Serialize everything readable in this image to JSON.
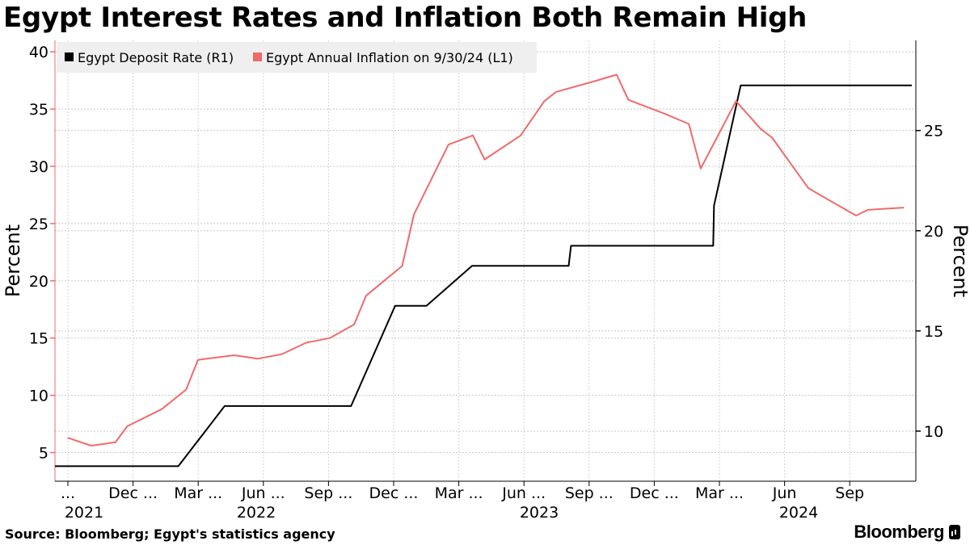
{
  "title": "Egypt Interest Rates and Inflation Both Remain High",
  "source": "Source: Bloomberg; Egypt's statistics agency",
  "brand": "Bloomberg",
  "chart_data": {
    "type": "line",
    "legend": {
      "placement": "top-left"
    },
    "grid": true,
    "x_tick_labels": [
      "...",
      "Dec ...",
      "Mar ...",
      "Jun ...",
      "Sep ...",
      "Dec ...",
      "Mar ...",
      "Jun ...",
      "Sep ...",
      "Dec ...",
      "Mar ...",
      "Jun",
      "Sep"
    ],
    "x_year_labels": [
      "2021",
      "2022",
      "2023",
      "2024"
    ],
    "left_axis": {
      "label": "Percent",
      "range": [
        2.5,
        41
      ],
      "ticks": [
        5,
        10,
        15,
        20,
        25,
        30,
        35,
        40
      ]
    },
    "right_axis": {
      "label": "Percent",
      "range": [
        7.5,
        29.5
      ],
      "ticks": [
        10,
        15,
        20,
        25
      ]
    },
    "x_range": [
      "2021-10-15",
      "2024-10-15"
    ],
    "series": [
      {
        "name": "Egypt Deposit Rate (R1)",
        "axis": "right",
        "color": "#000000",
        "points": [
          [
            "2021-10-15",
            8.25
          ],
          [
            "2022-03-21",
            8.25
          ],
          [
            "2022-05-19",
            11.25
          ],
          [
            "2022-10-27",
            11.25
          ],
          [
            "2022-12-22",
            16.25
          ],
          [
            "2023-01-31",
            16.25
          ],
          [
            "2023-03-30",
            18.25
          ],
          [
            "2023-07-31",
            18.25
          ],
          [
            "2023-08-03",
            19.25
          ],
          [
            "2024-01-31",
            19.25
          ],
          [
            "2024-02-01",
            21.25
          ],
          [
            "2024-03-06",
            27.25
          ],
          [
            "2024-10-10",
            27.25
          ]
        ]
      },
      {
        "name": "Egypt Annual Inflation on 9/30/24 (L1)",
        "axis": "left",
        "color": "#ef6b6b",
        "points": [
          [
            "2021-10-31",
            6.3
          ],
          [
            "2021-11-30",
            5.6
          ],
          [
            "2021-12-31",
            5.9
          ],
          [
            "2022-01-15",
            7.3
          ],
          [
            "2022-02-28",
            8.8
          ],
          [
            "2022-03-31",
            10.5
          ],
          [
            "2022-04-15",
            13.1
          ],
          [
            "2022-05-31",
            13.5
          ],
          [
            "2022-06-30",
            13.2
          ],
          [
            "2022-07-31",
            13.6
          ],
          [
            "2022-08-31",
            14.6
          ],
          [
            "2022-09-30",
            15.0
          ],
          [
            "2022-10-31",
            16.2
          ],
          [
            "2022-11-15",
            18.7
          ],
          [
            "2022-12-31",
            21.3
          ],
          [
            "2023-01-15",
            25.8
          ],
          [
            "2023-02-28",
            31.9
          ],
          [
            "2023-03-31",
            32.7
          ],
          [
            "2023-04-15",
            30.6
          ],
          [
            "2023-05-31",
            32.7
          ],
          [
            "2023-06-30",
            35.7
          ],
          [
            "2023-07-15",
            36.5
          ],
          [
            "2023-08-31",
            37.4
          ],
          [
            "2023-09-30",
            38.0
          ],
          [
            "2023-10-15",
            35.8
          ],
          [
            "2023-11-30",
            34.6
          ],
          [
            "2023-12-31",
            33.7
          ],
          [
            "2024-01-15",
            29.8
          ],
          [
            "2024-02-29",
            35.7
          ],
          [
            "2024-03-31",
            33.3
          ],
          [
            "2024-04-15",
            32.5
          ],
          [
            "2024-05-31",
            28.1
          ],
          [
            "2024-06-15",
            27.5
          ],
          [
            "2024-07-31",
            25.7
          ],
          [
            "2024-08-15",
            26.2
          ],
          [
            "2024-09-30",
            26.4
          ]
        ]
      }
    ]
  }
}
